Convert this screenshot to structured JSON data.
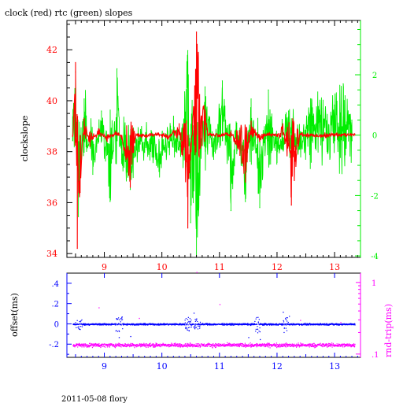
{
  "title": "clock (red) rtc (green) slopes",
  "footer": "2011-05-08 flory",
  "colors": {
    "red": "#ff0000",
    "green": "#00ee00",
    "blue": "#0000ff",
    "magenta": "#ff00ff",
    "axis": "#000000"
  },
  "chart_data": [
    {
      "type": "line",
      "title": "clock (red) rtc (green) slopes",
      "ylabel": "clockslope",
      "xlim": [
        8.35,
        13.45
      ],
      "ylim": [
        33.85,
        43.15
      ],
      "y2lim": [
        -4.05,
        3.8
      ],
      "xticks": [
        9,
        10,
        11,
        12,
        13
      ],
      "yticks": [
        34,
        36,
        38,
        40,
        42
      ],
      "y2ticks": [
        -4,
        -2,
        0,
        2
      ],
      "series": [
        {
          "color": "red",
          "axis": "left",
          "base": 38.65,
          "x": [
            8.45,
            8.5,
            8.53,
            8.58,
            8.65,
            8.75,
            8.9,
            9.05,
            9.2,
            9.3,
            9.45,
            9.55,
            9.7,
            9.9,
            10.1,
            10.3,
            10.45,
            10.6,
            10.8,
            11.0,
            11.2,
            11.45,
            11.55,
            11.7,
            11.85,
            12.0,
            12.1,
            12.25,
            12.4,
            12.6,
            12.8,
            13.0,
            13.2,
            13.35
          ],
          "y": [
            38.6,
            41.5,
            34.2,
            36.4,
            39.3,
            38.2,
            38.9,
            38.4,
            38.8,
            38.5,
            36.6,
            38.7,
            38.6,
            38.7,
            38.5,
            39.1,
            35.0,
            42.7,
            38.7,
            38.6,
            38.8,
            36.8,
            39.2,
            38.4,
            38.7,
            38.6,
            39.1,
            35.9,
            38.7,
            38.65,
            38.6,
            38.7,
            38.65,
            38.7
          ]
        },
        {
          "color": "green",
          "axis": "right",
          "base": -0.2,
          "x": [
            8.45,
            8.5,
            8.55,
            8.65,
            8.8,
            8.95,
            9.1,
            9.22,
            9.3,
            9.45,
            9.6,
            9.75,
            9.95,
            10.15,
            10.3,
            10.45,
            10.5,
            10.6,
            10.75,
            10.9,
            11.05,
            11.2,
            11.3,
            11.45,
            11.55,
            11.7,
            11.85,
            12.0,
            12.2,
            12.4,
            12.6,
            12.8,
            13.0,
            13.15,
            13.3
          ],
          "y": [
            0.2,
            2.1,
            -2.7,
            1.2,
            -1.3,
            0.8,
            -2.2,
            2.2,
            -0.8,
            -1.8,
            -0.2,
            -0.5,
            -1.2,
            0.3,
            -0.5,
            2.8,
            -2.9,
            -4.0,
            1.6,
            -0.8,
            1.8,
            -2.5,
            0.4,
            -2.2,
            1.2,
            -2.4,
            1.5,
            -0.9,
            0.8,
            -0.3,
            1.2,
            0.9,
            1.0,
            1.7,
            0.5
          ]
        }
      ]
    },
    {
      "type": "scatter",
      "ylabel": "offset(ms)",
      "y2label": "rnd-trip(ms)",
      "xlim": [
        8.35,
        13.45
      ],
      "ylim": [
        -0.33,
        0.5
      ],
      "y2_log": true,
      "y2lim": [
        0.09,
        1.35
      ],
      "xticks": [
        9,
        10,
        11,
        12,
        13
      ],
      "yticks": [
        -0.2,
        0,
        0.2,
        0.4
      ],
      "y2ticks": [
        0.1,
        1
      ],
      "series": [
        {
          "color": "blue",
          "axis": "left",
          "base": 0.0,
          "spread": 0.012,
          "x_range": [
            8.45,
            13.35
          ],
          "spikes": [
            [
              8.55,
              0.04
            ],
            [
              9.25,
              0.06
            ],
            [
              10.45,
              0.05
            ],
            [
              10.6,
              0.04
            ],
            [
              11.65,
              0.06
            ],
            [
              12.15,
              -0.06
            ]
          ],
          "outliers": [
            [
              9.25,
              -0.13
            ],
            [
              9.45,
              -0.12
            ],
            [
              10.55,
              0.11
            ],
            [
              11.5,
              -0.13
            ],
            [
              12.1,
              0.12
            ],
            [
              11.7,
              -0.15
            ]
          ]
        },
        {
          "color": "magenta",
          "axis": "right",
          "base": 0.135,
          "spread": 0.012,
          "x_range": [
            8.45,
            13.35
          ],
          "outliers": [
            [
              10.6,
              1.4
            ],
            [
              9.6,
              0.32
            ],
            [
              11.0,
              0.5
            ],
            [
              12.4,
              0.3
            ],
            [
              8.9,
              0.45
            ],
            [
              13.1,
              0.28
            ]
          ]
        }
      ]
    }
  ]
}
